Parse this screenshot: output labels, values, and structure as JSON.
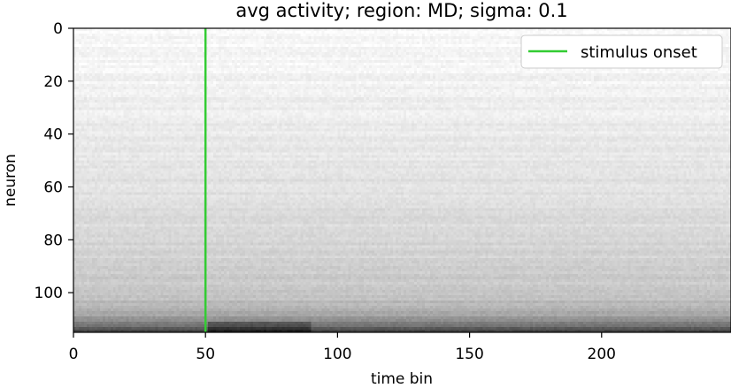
{
  "chart_data": {
    "type": "heatmap",
    "title": "avg activity; region: MD; sigma: 0.1",
    "xlabel": "time bin",
    "ylabel": "neuron",
    "xlim": [
      0,
      249
    ],
    "ylim": [
      115,
      0
    ],
    "y_inverted": true,
    "xticks": [
      0,
      50,
      100,
      150,
      200
    ],
    "yticks": [
      0,
      20,
      40,
      60,
      80,
      100
    ],
    "colormap": "greys",
    "grid": false,
    "legend": {
      "placement": "top-right",
      "entries": [
        {
          "label": "stimulus onset",
          "color": "#33cc33"
        }
      ]
    },
    "stimulus_onset": {
      "x": 50,
      "label": "stimulus onset",
      "color": "#33cc33"
    },
    "rows": 115,
    "cols": 249,
    "activity_profile": {
      "description_values": "estimated gray level (0=white,1=black) by neuron index",
      "neuron_index": [
        0,
        20,
        40,
        60,
        80,
        100,
        108,
        112,
        114
      ],
      "level": [
        0.02,
        0.05,
        0.08,
        0.12,
        0.16,
        0.22,
        0.35,
        0.55,
        0.75
      ]
    }
  }
}
